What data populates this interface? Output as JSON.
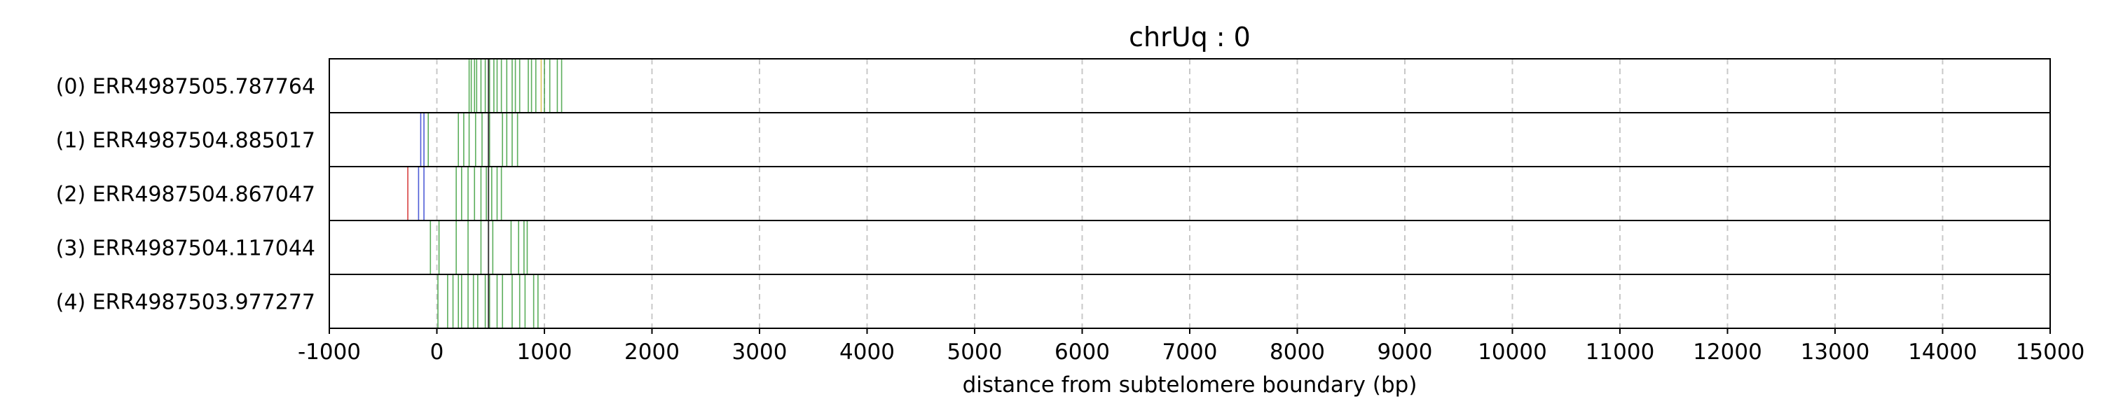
{
  "chart_data": {
    "type": "read_track_plot",
    "title": "chrUq : 0",
    "xlabel": "distance from subtelomere boundary (bp)",
    "ylabel": "",
    "xlim": [
      -1000,
      15000
    ],
    "xticks": [
      -1000,
      0,
      1000,
      2000,
      3000,
      4000,
      5000,
      6000,
      7000,
      8000,
      9000,
      10000,
      11000,
      12000,
      13000,
      14000,
      15000
    ],
    "xtick_labels": [
      "-1000",
      "0",
      "1000",
      "2000",
      "3000",
      "4000",
      "5000",
      "6000",
      "7000",
      "8000",
      "9000",
      "10000",
      "11000",
      "12000",
      "13000",
      "14000",
      "15000"
    ],
    "grid": {
      "x": true,
      "style": "dashed",
      "color": "#c8c8c8"
    },
    "vline_color": "#3f3f3f",
    "mark_colors": {
      "green": "#3fa03f",
      "blue": "#2f3fd0",
      "red": "#d02020",
      "yellow": "#d8c040"
    },
    "reads": [
      {
        "label": "(0) ERR4987505.787764",
        "marks": [
          {
            "x": 300,
            "color": "green"
          },
          {
            "x": 320,
            "color": "green"
          },
          {
            "x": 350,
            "color": "green"
          },
          {
            "x": 370,
            "color": "green"
          },
          {
            "x": 410,
            "color": "green"
          },
          {
            "x": 450,
            "color": "green"
          },
          {
            "x": 490,
            "color": "green"
          },
          {
            "x": 530,
            "color": "green"
          },
          {
            "x": 560,
            "color": "green"
          },
          {
            "x": 600,
            "color": "green"
          },
          {
            "x": 650,
            "color": "green"
          },
          {
            "x": 700,
            "color": "green"
          },
          {
            "x": 730,
            "color": "green"
          },
          {
            "x": 770,
            "color": "green"
          },
          {
            "x": 850,
            "color": "green"
          },
          {
            "x": 880,
            "color": "green"
          },
          {
            "x": 920,
            "color": "green"
          },
          {
            "x": 970,
            "color": "yellow"
          },
          {
            "x": 1000,
            "color": "green"
          },
          {
            "x": 1050,
            "color": "green"
          },
          {
            "x": 1120,
            "color": "green"
          },
          {
            "x": 1160,
            "color": "green"
          }
        ]
      },
      {
        "label": "(1) ERR4987504.885017",
        "marks": [
          {
            "x": -150,
            "color": "blue"
          },
          {
            "x": -120,
            "color": "blue"
          },
          {
            "x": -80,
            "color": "green"
          },
          {
            "x": 200,
            "color": "green"
          },
          {
            "x": 250,
            "color": "green"
          },
          {
            "x": 300,
            "color": "green"
          },
          {
            "x": 360,
            "color": "green"
          },
          {
            "x": 420,
            "color": "green"
          },
          {
            "x": 490,
            "color": "green"
          },
          {
            "x": 610,
            "color": "green"
          },
          {
            "x": 650,
            "color": "green"
          },
          {
            "x": 700,
            "color": "green"
          },
          {
            "x": 750,
            "color": "green"
          }
        ]
      },
      {
        "label": "(2) ERR4987504.867047",
        "marks": [
          {
            "x": -270,
            "color": "red"
          },
          {
            "x": -170,
            "color": "blue"
          },
          {
            "x": -120,
            "color": "blue"
          },
          {
            "x": 180,
            "color": "green"
          },
          {
            "x": 230,
            "color": "green"
          },
          {
            "x": 290,
            "color": "green"
          },
          {
            "x": 350,
            "color": "green"
          },
          {
            "x": 410,
            "color": "green"
          },
          {
            "x": 460,
            "color": "green"
          },
          {
            "x": 510,
            "color": "green"
          },
          {
            "x": 560,
            "color": "green"
          },
          {
            "x": 600,
            "color": "green"
          }
        ]
      },
      {
        "label": "(3) ERR4987504.117044",
        "marks": [
          {
            "x": -60,
            "color": "green"
          },
          {
            "x": 20,
            "color": "green"
          },
          {
            "x": 180,
            "color": "green"
          },
          {
            "x": 290,
            "color": "green"
          },
          {
            "x": 410,
            "color": "green"
          },
          {
            "x": 520,
            "color": "green"
          },
          {
            "x": 690,
            "color": "green"
          },
          {
            "x": 760,
            "color": "green"
          },
          {
            "x": 810,
            "color": "green"
          },
          {
            "x": 840,
            "color": "green"
          }
        ]
      },
      {
        "label": "(4) ERR4987503.977277",
        "marks": [
          {
            "x": 10,
            "color": "green"
          },
          {
            "x": 100,
            "color": "green"
          },
          {
            "x": 150,
            "color": "green"
          },
          {
            "x": 200,
            "color": "green"
          },
          {
            "x": 230,
            "color": "green"
          },
          {
            "x": 290,
            "color": "green"
          },
          {
            "x": 340,
            "color": "green"
          },
          {
            "x": 380,
            "color": "green"
          },
          {
            "x": 450,
            "color": "green"
          },
          {
            "x": 490,
            "color": "green"
          },
          {
            "x": 560,
            "color": "green"
          },
          {
            "x": 610,
            "color": "green"
          },
          {
            "x": 700,
            "color": "green"
          },
          {
            "x": 770,
            "color": "green"
          },
          {
            "x": 820,
            "color": "green"
          },
          {
            "x": 900,
            "color": "green"
          },
          {
            "x": 940,
            "color": "green"
          }
        ]
      }
    ],
    "vlines": [
      {
        "read": 0,
        "x": 480
      },
      {
        "read": 1,
        "x": 480
      },
      {
        "read": 2,
        "x": 480
      },
      {
        "read": 3,
        "x": 480
      },
      {
        "read": 4,
        "x": 480
      }
    ]
  }
}
